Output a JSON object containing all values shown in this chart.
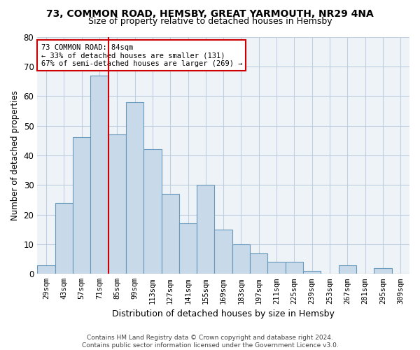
{
  "title1": "73, COMMON ROAD, HEMSBY, GREAT YARMOUTH, NR29 4NA",
  "title2": "Size of property relative to detached houses in Hemsby",
  "xlabel": "Distribution of detached houses by size in Hemsby",
  "ylabel": "Number of detached properties",
  "categories": [
    "29sqm",
    "43sqm",
    "57sqm",
    "71sqm",
    "85sqm",
    "99sqm",
    "113sqm",
    "127sqm",
    "141sqm",
    "155sqm",
    "169sqm",
    "183sqm",
    "197sqm",
    "211sqm",
    "225sqm",
    "239sqm",
    "253sqm",
    "267sqm",
    "281sqm",
    "295sqm",
    "309sqm"
  ],
  "values": [
    3,
    24,
    46,
    67,
    47,
    58,
    42,
    27,
    17,
    30,
    15,
    10,
    7,
    4,
    4,
    1,
    0,
    3,
    0,
    2,
    0
  ],
  "bar_color": "#c8d9ea",
  "bar_edge_color": "#6699bb",
  "highlight_line_color": "#cc0000",
  "highlight_line_index": 3.5,
  "annotation_text": "73 COMMON ROAD: 84sqm\n← 33% of detached houses are smaller (131)\n67% of semi-detached houses are larger (269) →",
  "annotation_box_color": "#cc0000",
  "annotation_fill": "white",
  "ylim": [
    0,
    80
  ],
  "yticks": [
    0,
    10,
    20,
    30,
    40,
    50,
    60,
    70,
    80
  ],
  "footer_text": "Contains HM Land Registry data © Crown copyright and database right 2024.\nContains public sector information licensed under the Government Licence v3.0.",
  "bg_color": "#eef3f8",
  "grid_color": "#c0cfe0"
}
